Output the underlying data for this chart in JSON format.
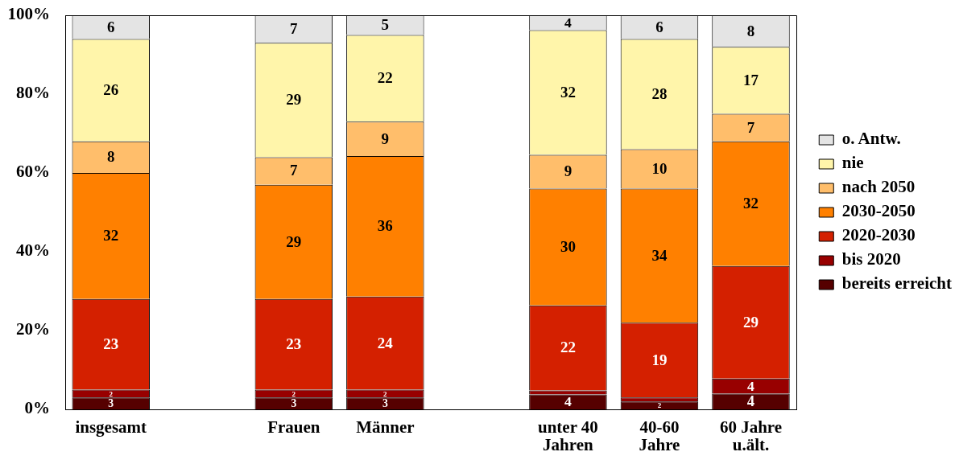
{
  "chart_data": {
    "type": "bar",
    "stacked": true,
    "categories": [
      "insgesamt",
      null,
      "Frauen",
      "Männer",
      null,
      "unter 40 Jahren",
      "40-60 Jahre",
      "60 Jahre u.ält."
    ],
    "series": [
      {
        "name": "bereits erreicht",
        "color": "#560000",
        "values": [
          3,
          null,
          3,
          3,
          null,
          3.8,
          2,
          4
        ],
        "value_labels": [
          "3",
          null,
          "3",
          "3",
          null,
          "4",
          "2",
          "4"
        ]
      },
      {
        "name": "bis 2020",
        "color": "#980000",
        "values": [
          2,
          null,
          2,
          2,
          null,
          1,
          1,
          3.8
        ],
        "value_labels": [
          "2",
          null,
          "2",
          "2",
          null,
          null,
          null,
          "4"
        ]
      },
      {
        "name": "2020-2030",
        "color": "#d42000",
        "values": [
          23,
          null,
          23,
          23.6,
          null,
          21.6,
          19,
          28.6
        ],
        "value_labels": [
          "23",
          null,
          "23",
          "24",
          null,
          "22",
          "19",
          "29"
        ]
      },
      {
        "name": "2030-2050",
        "color": "#ff8000",
        "values": [
          32,
          null,
          29,
          35.7,
          null,
          29.6,
          34,
          31.6
        ],
        "value_labels": [
          "32",
          null,
          "29",
          "36",
          null,
          "30",
          "34",
          "32"
        ]
      },
      {
        "name": "nach 2050",
        "color": "#ffbe6b",
        "values": [
          8,
          null,
          7,
          8.7,
          null,
          8.6,
          10,
          7
        ],
        "value_labels": [
          "8",
          null,
          "7",
          "9",
          null,
          "9",
          "10",
          "7"
        ]
      },
      {
        "name": "nie",
        "color": "#fff5aa",
        "values": [
          26,
          null,
          29,
          22,
          null,
          31.6,
          28,
          17
        ],
        "value_labels": [
          "26",
          null,
          "29",
          "22",
          null,
          "32",
          "28",
          "17"
        ]
      },
      {
        "name": "o. Antw.",
        "color": "#e4e4e4",
        "values": [
          6,
          null,
          7,
          5,
          null,
          3.8,
          6,
          8
        ],
        "value_labels": [
          "6",
          null,
          "7",
          "5",
          null,
          "4",
          "6",
          "8"
        ]
      }
    ],
    "ylim": [
      0,
      100
    ],
    "yticks": [
      {
        "value": 0,
        "label": "0%"
      },
      {
        "value": 20,
        "label": "20%"
      },
      {
        "value": 40,
        "label": "40%"
      },
      {
        "value": 60,
        "label": "60%"
      },
      {
        "value": 80,
        "label": "80%"
      },
      {
        "value": 100,
        "label": "100%"
      }
    ],
    "legend": "right"
  }
}
